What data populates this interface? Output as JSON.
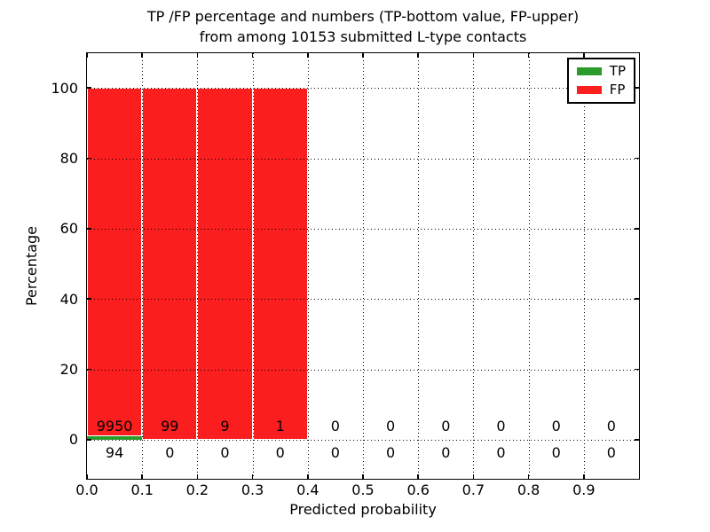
{
  "title": {
    "line1": "TP /FP percentage and numbers (TP-bottom value, FP-upper)",
    "line2": "from among 10153 submitted L-type contacts"
  },
  "axes": {
    "xlabel": "Predicted probability",
    "ylabel": "Percentage",
    "xtick_values": [
      0.0,
      0.1,
      0.2,
      0.3,
      0.4,
      0.5,
      0.6,
      0.7,
      0.8,
      0.9
    ],
    "xtick_labels": [
      "0.0",
      "0.1",
      "0.2",
      "0.3",
      "0.4",
      "0.5",
      "0.6",
      "0.7",
      "0.8",
      "0.9"
    ],
    "ytick_values": [
      0,
      20,
      40,
      60,
      80,
      100
    ],
    "ytick_labels": [
      "0",
      "20",
      "40",
      "60",
      "80",
      "100"
    ]
  },
  "legend": {
    "entries": [
      {
        "label": "TP",
        "color": "#2a9b2a"
      },
      {
        "label": "FP",
        "color": "#fa1e1e"
      }
    ]
  },
  "chart_data": {
    "type": "bar",
    "stacked": true,
    "title": "TP /FP percentage and numbers (TP-bottom value, FP-upper) from among 10153 submitted L-type contacts",
    "total_contacts": 10153,
    "xlabel": "Predicted probability",
    "ylabel": "Percentage",
    "xlim": [
      0.0,
      1.0
    ],
    "ylim": [
      -11,
      110
    ],
    "grid": "dotted, both axes, drawn over bars",
    "legend_position": "upper right",
    "bin_edges": [
      0.0,
      0.1,
      0.2,
      0.3,
      0.4,
      0.5,
      0.6,
      0.7,
      0.8,
      0.9,
      1.0
    ],
    "series": [
      {
        "name": "TP",
        "color": "#2a9b2a",
        "counts": [
          94,
          0,
          0,
          0,
          0,
          0,
          0,
          0,
          0,
          0
        ],
        "percent": [
          0.94,
          0,
          0,
          0,
          0,
          0,
          0,
          0,
          0,
          0
        ]
      },
      {
        "name": "FP",
        "color": "#fa1e1e",
        "counts": [
          9950,
          99,
          9,
          1,
          0,
          0,
          0,
          0,
          0,
          0
        ],
        "percent": [
          99.06,
          100,
          100,
          100,
          0,
          0,
          0,
          0,
          0,
          0
        ]
      }
    ],
    "count_label_rows": {
      "fp_row_percent_y": 3.9,
      "tp_row_percent_y": -3.6
    }
  }
}
